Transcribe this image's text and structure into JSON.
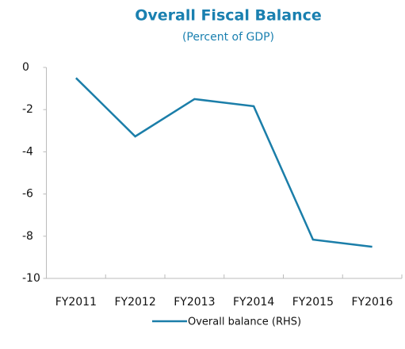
{
  "chart_data": {
    "type": "line",
    "title": "Overall Fiscal Balance",
    "subtitle": "(Percent of GDP)",
    "categories": [
      "FY2011",
      "FY2012",
      "FY2013",
      "FY2014",
      "FY2015",
      "FY2016"
    ],
    "series": [
      {
        "name": "Overall balance (RHS)",
        "color": "#1b7ea9",
        "values": [
          -0.5,
          -3.27,
          -1.5,
          -1.84,
          -8.16,
          -8.5
        ]
      }
    ],
    "ylim": [
      -10,
      0
    ],
    "yticks": [
      0,
      -2,
      -4,
      -6,
      -8,
      -10
    ],
    "title_color": "#1a80b0"
  }
}
